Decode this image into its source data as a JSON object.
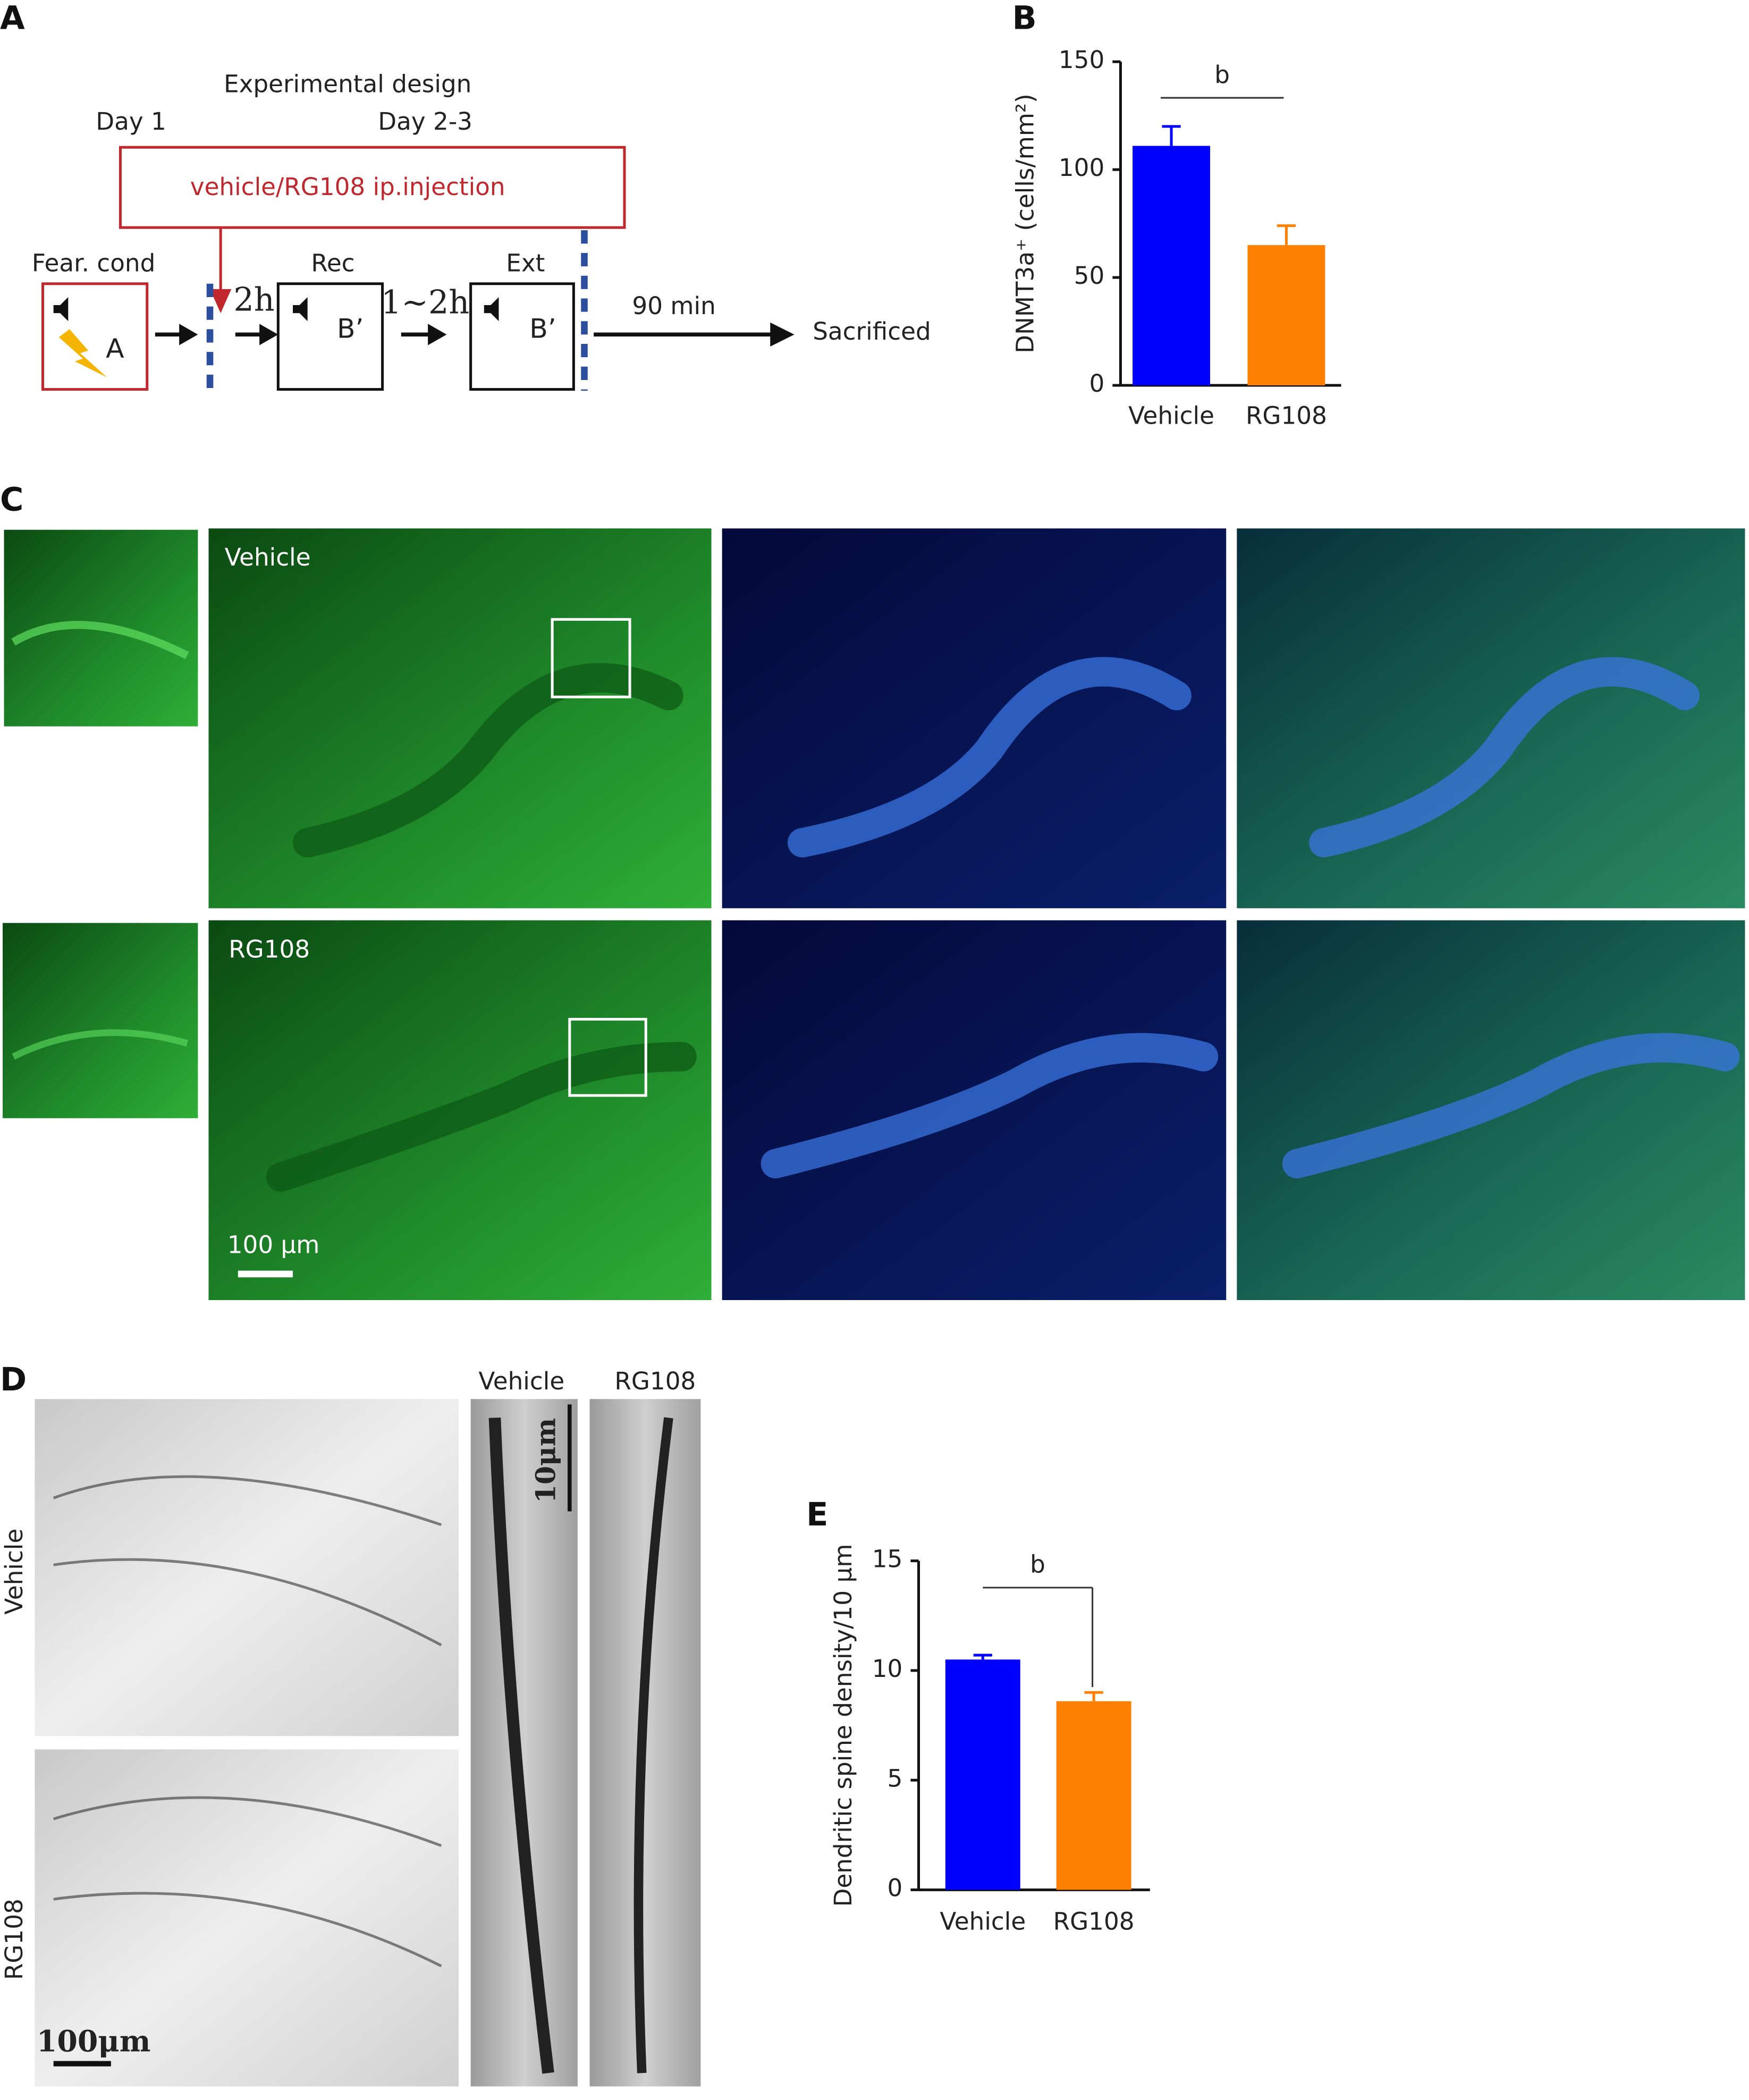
{
  "panel_labels": [
    "A",
    "B",
    "C",
    "D",
    "E"
  ],
  "design": {
    "title": "Experimental design",
    "day1": "Day 1",
    "day23": "Day 2-3",
    "injection": "vehicle/RG108 ip.injection",
    "fear": "Fear. cond",
    "rec": "Rec",
    "ext": "Ext",
    "ctx_a": "A",
    "ctx_b1": "B’",
    "ctx_b2": "B’",
    "t1": "2h",
    "t2": "1~2h",
    "t3": "90 min",
    "end": "Sacrificed"
  },
  "images_c": {
    "row1": "Vehicle",
    "row2": "RG108",
    "scale": "100 μm"
  },
  "images_d": {
    "row1": "Vehicle",
    "row2": "RG108",
    "col1": "Vehicle",
    "col2": "RG108",
    "scale_left": "100μm",
    "scale_right": "10μm"
  },
  "chart_data": [
    {
      "type": "bar",
      "y_label": "DNMT3a⁺ (cells/mm²)",
      "categories": [
        "Vehicle",
        "RG108"
      ],
      "values": [
        111,
        65
      ],
      "errors": [
        9,
        9
      ],
      "colors": [
        "#0000ff",
        "#ff7f00"
      ],
      "ylim": [
        0,
        150
      ],
      "yticks": [
        0,
        50,
        100,
        150
      ],
      "significance": "b"
    },
    {
      "type": "bar",
      "y_label": "Dendritic spine density/10 μm",
      "categories": [
        "Vehicle",
        "RG108"
      ],
      "values": [
        10.5,
        8.6
      ],
      "errors": [
        0.2,
        0.4
      ],
      "colors": [
        "#0000ff",
        "#ff7f00"
      ],
      "ylim": [
        0,
        15
      ],
      "yticks": [
        0,
        5,
        10,
        15
      ],
      "significance": "b"
    }
  ]
}
